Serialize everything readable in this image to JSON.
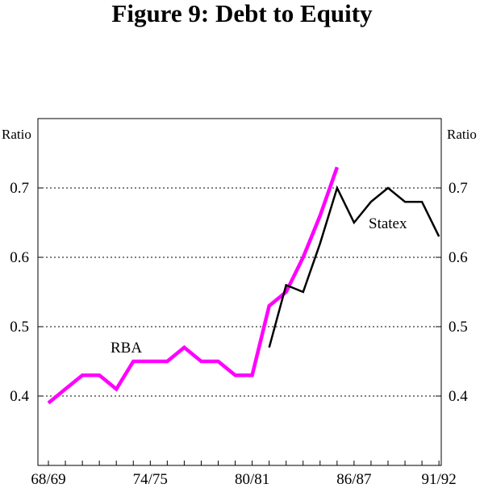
{
  "chart_data": {
    "type": "line",
    "title": "Figure 9: Debt to Equity",
    "ylabel_left": "Ratio",
    "ylabel_right": "Ratio",
    "ylim": [
      0.3,
      0.8
    ],
    "y_ticks": [
      0.4,
      0.5,
      0.6,
      0.7
    ],
    "y_tick_labels": [
      "0.4",
      "0.5",
      "0.6",
      "0.7"
    ],
    "x_categories": [
      "68/69",
      "69/70",
      "70/71",
      "71/72",
      "72/73",
      "73/74",
      "74/75",
      "75/76",
      "76/77",
      "77/78",
      "78/79",
      "79/80",
      "80/81",
      "81/82",
      "82/83",
      "83/84",
      "84/85",
      "85/86",
      "86/87",
      "87/88",
      "88/89",
      "89/90",
      "90/91",
      "91/92"
    ],
    "x_tick_labels": [
      "68/69",
      "74/75",
      "80/81",
      "86/87",
      "91/92"
    ],
    "grid_y": true,
    "series": [
      {
        "name": "RBA",
        "color": "#ff00ff",
        "points": [
          [
            "68/69",
            0.39
          ],
          [
            "69/70",
            0.41
          ],
          [
            "70/71",
            0.43
          ],
          [
            "71/72",
            0.43
          ],
          [
            "72/73",
            0.41
          ],
          [
            "73/74",
            0.45
          ],
          [
            "74/75",
            0.45
          ],
          [
            "75/76",
            0.45
          ],
          [
            "76/77",
            0.47
          ],
          [
            "77/78",
            0.45
          ],
          [
            "78/79",
            0.45
          ],
          [
            "79/80",
            0.43
          ],
          [
            "80/81",
            0.43
          ],
          [
            "81/82",
            0.53
          ],
          [
            "82/83",
            0.55
          ],
          [
            "83/84",
            0.6
          ],
          [
            "84/85",
            0.66
          ],
          [
            "85/86",
            0.73
          ]
        ]
      },
      {
        "name": "Statex",
        "color": "#000000",
        "points": [
          [
            "81/82",
            0.47
          ],
          [
            "82/83",
            0.56
          ],
          [
            "83/84",
            0.55
          ],
          [
            "84/85",
            0.62
          ],
          [
            "85/86",
            0.7
          ],
          [
            "86/87",
            0.65
          ],
          [
            "87/88",
            0.68
          ],
          [
            "88/89",
            0.7
          ],
          [
            "89/90",
            0.68
          ],
          [
            "90/91",
            0.68
          ],
          [
            "91/92",
            0.63
          ]
        ]
      }
    ]
  }
}
